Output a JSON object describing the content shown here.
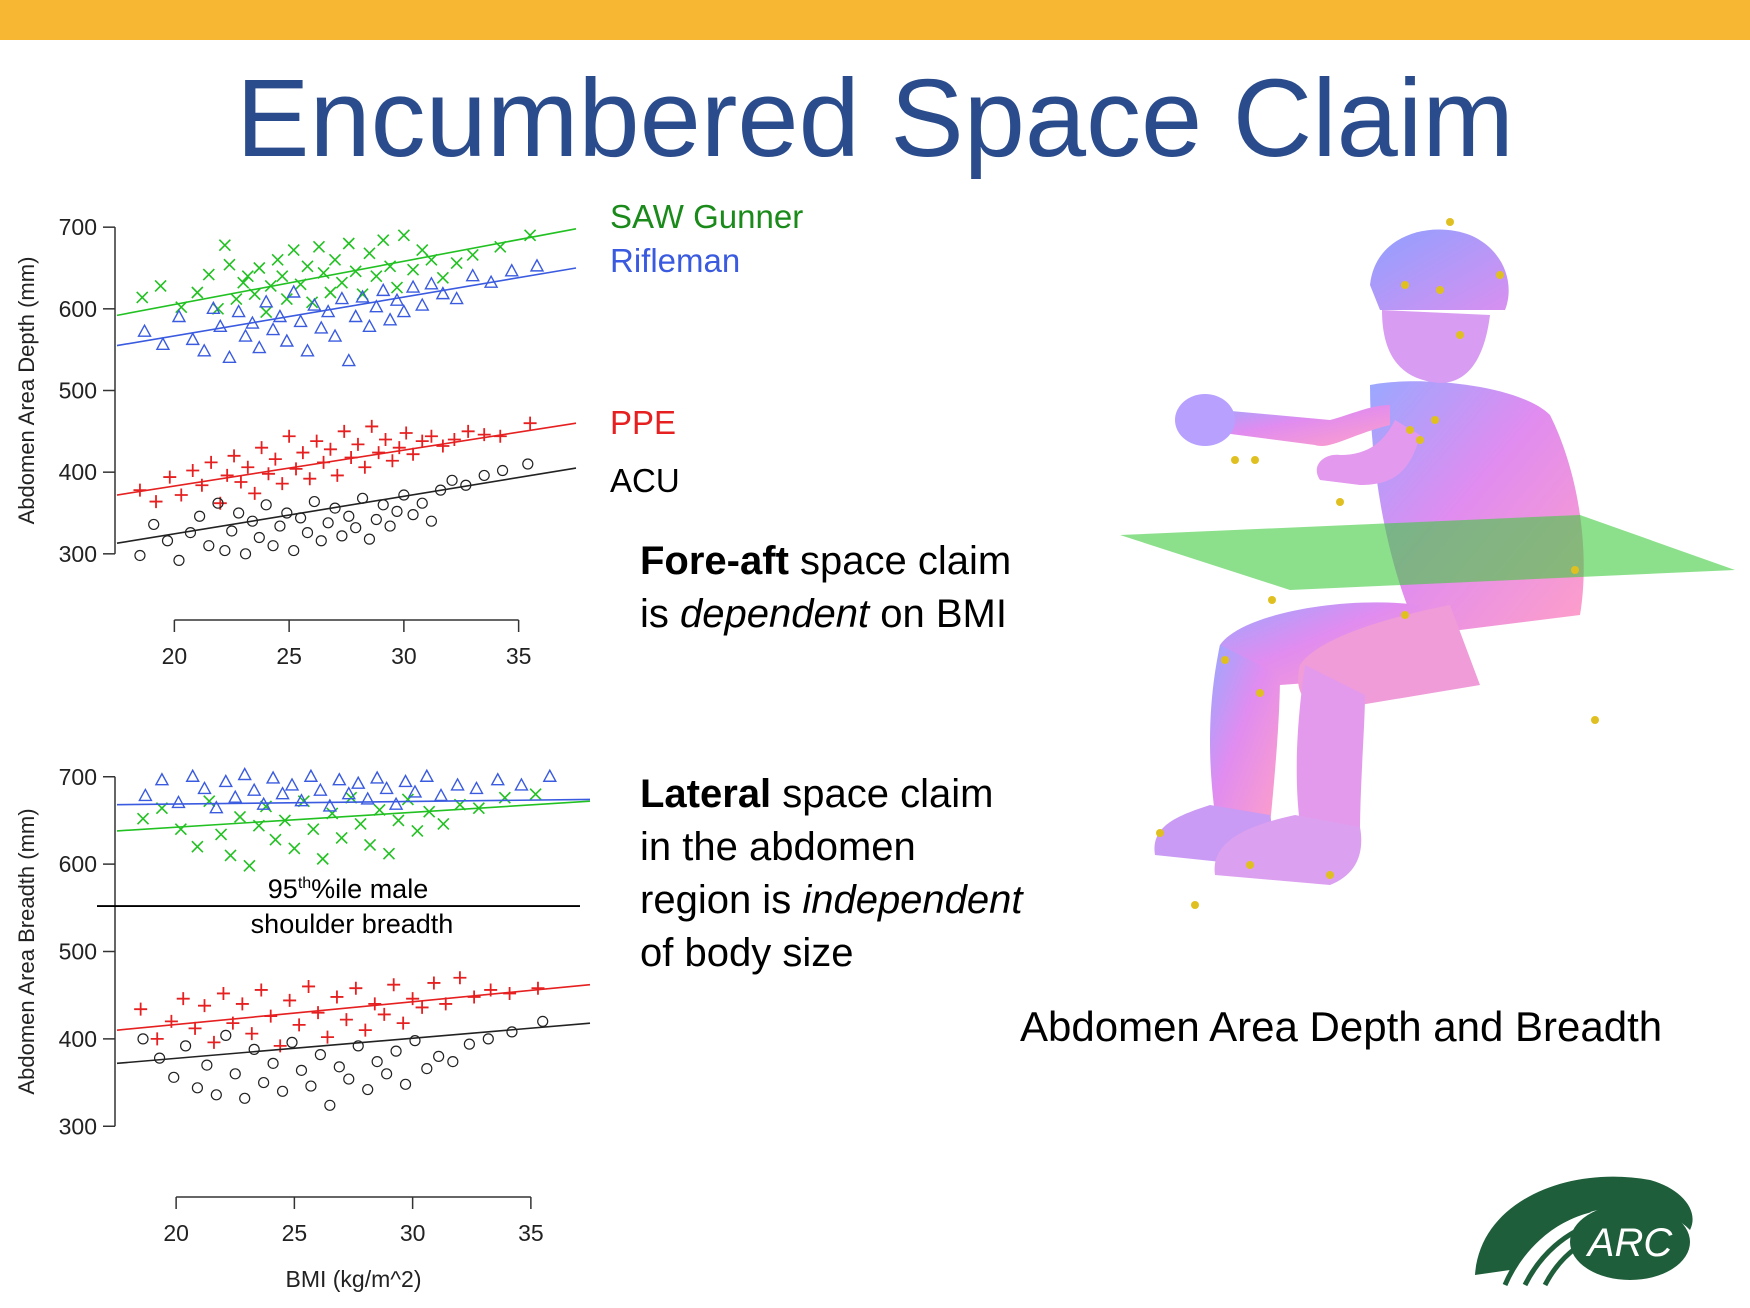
{
  "slide": {
    "title": "Encumbered Space Claim",
    "accent_bar_color": "#F7B733",
    "title_color": "#2B4C8C"
  },
  "legend": {
    "saw_gunner": {
      "label": "SAW Gunner",
      "color": "#1A8A1A"
    },
    "rifleman": {
      "label": "Rifleman",
      "color": "#3A5BE0"
    },
    "ppe": {
      "label": "PPE",
      "color": "#E62020"
    },
    "acu": {
      "label": "ACU",
      "color": "#000000"
    }
  },
  "statements": {
    "fore_aft": {
      "bold": "Fore-aft",
      "line1_rest": " space claim",
      "line2_pre": "is ",
      "line2_italic": "dependent",
      "line2_post": " on BMI"
    },
    "lateral": {
      "bold": "Lateral",
      "line1_rest": " space claim",
      "line2": "in the abdomen",
      "line3_pre": "region is ",
      "line3_italic": "independent",
      "line4": "of body size"
    }
  },
  "figure_caption": "Abdomen Area Depth and Breadth",
  "logo": {
    "text": "ARC",
    "icon": "arc-logo-swoosh",
    "color": "#1F5E3A"
  },
  "model_icon": "soldier-3d-model",
  "chart_data": [
    {
      "type": "scatter",
      "title": "",
      "xlabel": "",
      "ylabel": "Abdomen Area Depth (mm)",
      "xlim": [
        17.5,
        37.5
      ],
      "ylim": [
        290,
        710
      ],
      "xticks": [
        "20",
        "25",
        "30",
        "35"
      ],
      "yticks": [
        "300",
        "400",
        "500",
        "600",
        "700"
      ],
      "series": [
        {
          "name": "SAW Gunner",
          "marker": "x",
          "color": "#22C122",
          "line": [
            [
              17.5,
              592
            ],
            [
              37.5,
              698
            ]
          ],
          "x": [
            18.6,
            19.4,
            20.3,
            21.0,
            21.5,
            21.9,
            22.2,
            22.4,
            22.7,
            23.0,
            23.2,
            23.5,
            23.7,
            24.0,
            24.2,
            24.5,
            24.7,
            24.9,
            25.2,
            25.5,
            25.8,
            26.0,
            26.3,
            26.5,
            26.8,
            27.0,
            27.3,
            27.6,
            27.9,
            28.2,
            28.5,
            28.8,
            29.1,
            29.4,
            29.7,
            30.0,
            30.4,
            30.8,
            31.2,
            31.7,
            32.3,
            33.0,
            34.2,
            35.5
          ],
          "y": [
            614,
            628,
            602,
            620,
            642,
            600,
            678,
            654,
            612,
            632,
            640,
            618,
            650,
            596,
            628,
            660,
            640,
            612,
            672,
            630,
            652,
            608,
            676,
            644,
            620,
            660,
            632,
            680,
            646,
            618,
            668,
            640,
            684,
            652,
            626,
            690,
            648,
            672,
            660,
            638,
            656,
            666,
            676,
            690
          ]
        },
        {
          "name": "Rifleman",
          "marker": "triangle",
          "color": "#3A5BE0",
          "line": [
            [
              17.5,
              555
            ],
            [
              37.5,
              650
            ]
          ],
          "x": [
            18.7,
            19.5,
            20.2,
            20.8,
            21.3,
            21.7,
            22.0,
            22.4,
            22.8,
            23.1,
            23.4,
            23.7,
            24.0,
            24.3,
            24.6,
            24.9,
            25.2,
            25.5,
            25.8,
            26.1,
            26.4,
            26.7,
            27.0,
            27.3,
            27.6,
            27.9,
            28.2,
            28.5,
            28.8,
            29.1,
            29.4,
            29.7,
            30.0,
            30.4,
            30.8,
            31.2,
            31.7,
            32.3,
            33.0,
            33.8,
            34.7,
            35.8
          ],
          "y": [
            572,
            556,
            590,
            562,
            548,
            600,
            578,
            540,
            596,
            566,
            582,
            552,
            608,
            574,
            590,
            560,
            620,
            584,
            548,
            604,
            576,
            596,
            566,
            612,
            536,
            590,
            614,
            578,
            602,
            622,
            586,
            610,
            596,
            626,
            604,
            630,
            618,
            612,
            640,
            632,
            646,
            652
          ]
        }
      ]
    },
    {
      "type": "scatter",
      "title": "",
      "xlabel": "",
      "ylabel": "",
      "series": [
        {
          "name": "PPE",
          "marker": "plus",
          "color": "#E62020",
          "line": [
            [
              17.5,
              372
            ],
            [
              37.5,
              460
            ]
          ],
          "x": [
            18.5,
            19.2,
            19.8,
            20.3,
            20.8,
            21.2,
            21.6,
            22.0,
            22.3,
            22.6,
            22.9,
            23.2,
            23.5,
            23.8,
            24.1,
            24.4,
            24.7,
            25.0,
            25.3,
            25.6,
            25.9,
            26.2,
            26.5,
            26.8,
            27.1,
            27.4,
            27.7,
            28.0,
            28.3,
            28.6,
            28.9,
            29.2,
            29.5,
            29.8,
            30.1,
            30.4,
            30.8,
            31.2,
            31.7,
            32.2,
            32.8,
            33.5,
            34.2,
            35.5
          ],
          "y": [
            378,
            364,
            394,
            372,
            402,
            384,
            412,
            362,
            396,
            420,
            388,
            406,
            374,
            430,
            398,
            416,
            386,
            444,
            404,
            424,
            392,
            438,
            412,
            428,
            396,
            450,
            418,
            434,
            406,
            456,
            424,
            440,
            414,
            430,
            448,
            422,
            438,
            444,
            432,
            440,
            450,
            446,
            444,
            460
          ]
        },
        {
          "name": "ACU",
          "marker": "circle",
          "color": "#222222",
          "line": [
            [
              17.5,
              313
            ],
            [
              37.5,
              405
            ]
          ],
          "x": [
            18.5,
            19.1,
            19.7,
            20.2,
            20.7,
            21.1,
            21.5,
            21.9,
            22.2,
            22.5,
            22.8,
            23.1,
            23.4,
            23.7,
            24.0,
            24.3,
            24.6,
            24.9,
            25.2,
            25.5,
            25.8,
            26.1,
            26.4,
            26.7,
            27.0,
            27.3,
            27.6,
            27.9,
            28.2,
            28.5,
            28.8,
            29.1,
            29.4,
            29.7,
            30.0,
            30.4,
            30.8,
            31.2,
            31.6,
            32.1,
            32.7,
            33.5,
            34.3,
            35.4
          ],
          "y": [
            298,
            336,
            316,
            292,
            326,
            346,
            310,
            362,
            304,
            328,
            350,
            300,
            340,
            320,
            360,
            310,
            334,
            350,
            304,
            344,
            326,
            364,
            316,
            338,
            356,
            322,
            346,
            332,
            368,
            318,
            342,
            360,
            334,
            352,
            372,
            348,
            362,
            340,
            378,
            390,
            384,
            396,
            402,
            410
          ]
        }
      ]
    },
    {
      "type": "scatter",
      "title": "",
      "xlabel": "BMI (kg/m^2)",
      "ylabel": "Abdomen Area Breadth (mm)",
      "xlim": [
        17.5,
        37.5
      ],
      "ylim": [
        290,
        710
      ],
      "xticks": [
        "20",
        "25",
        "30",
        "35"
      ],
      "yticks": [
        "300",
        "400",
        "500",
        "600",
        "700"
      ],
      "annotation": {
        "line1_base": "95",
        "line1_sup": "th",
        "line1_rest": "%ile male",
        "line2": "shoulder breadth",
        "value": 552
      },
      "series": [
        {
          "name": "SAW Gunner",
          "marker": "x",
          "color": "#22C122",
          "line": [
            [
              17.5,
              638
            ],
            [
              37.5,
              672
            ]
          ],
          "x": [
            18.6,
            19.4,
            20.2,
            20.9,
            21.4,
            21.9,
            22.3,
            22.7,
            23.1,
            23.5,
            23.8,
            24.2,
            24.6,
            25.0,
            25.4,
            25.8,
            26.2,
            26.6,
            27.0,
            27.4,
            27.8,
            28.2,
            28.6,
            29.0,
            29.4,
            29.8,
            30.2,
            30.7,
            31.3,
            32.0,
            32.8,
            33.9,
            35.2
          ],
          "y": [
            652,
            664,
            640,
            620,
            672,
            634,
            610,
            654,
            598,
            644,
            666,
            628,
            650,
            618,
            672,
            640,
            606,
            658,
            630,
            676,
            646,
            622,
            662,
            612,
            650,
            674,
            638,
            660,
            646,
            668,
            664,
            676,
            680
          ]
        },
        {
          "name": "Rifleman",
          "marker": "triangle",
          "color": "#3A5BE0",
          "line": [
            [
              17.5,
              668
            ],
            [
              37.5,
              674
            ]
          ],
          "x": [
            18.7,
            19.4,
            20.1,
            20.7,
            21.2,
            21.7,
            22.1,
            22.5,
            22.9,
            23.3,
            23.7,
            24.1,
            24.5,
            24.9,
            25.3,
            25.7,
            26.1,
            26.5,
            26.9,
            27.3,
            27.7,
            28.1,
            28.5,
            28.9,
            29.3,
            29.7,
            30.1,
            30.6,
            31.2,
            31.9,
            32.7,
            33.6,
            34.6,
            35.8
          ],
          "y": [
            678,
            696,
            670,
            700,
            686,
            664,
            694,
            676,
            702,
            684,
            668,
            698,
            680,
            690,
            672,
            700,
            684,
            666,
            696,
            680,
            692,
            674,
            698,
            686,
            668,
            694,
            682,
            700,
            678,
            690,
            686,
            696,
            690,
            700
          ]
        }
      ]
    },
    {
      "type": "scatter",
      "title": "",
      "xlabel": "",
      "ylabel": "",
      "series": [
        {
          "name": "PPE",
          "marker": "plus",
          "color": "#E62020",
          "line": [
            [
              17.5,
              410
            ],
            [
              37.5,
              462
            ]
          ],
          "x": [
            18.5,
            19.2,
            19.8,
            20.3,
            20.8,
            21.2,
            21.6,
            22.0,
            22.4,
            22.8,
            23.2,
            23.6,
            24.0,
            24.4,
            24.8,
            25.2,
            25.6,
            26.0,
            26.4,
            26.8,
            27.2,
            27.6,
            28.0,
            28.4,
            28.8,
            29.2,
            29.6,
            30.0,
            30.4,
            30.9,
            31.4,
            32.0,
            32.6,
            33.3,
            34.1,
            35.3
          ],
          "y": [
            434,
            400,
            420,
            446,
            412,
            438,
            396,
            452,
            418,
            440,
            406,
            456,
            426,
            392,
            444,
            416,
            460,
            430,
            402,
            448,
            422,
            458,
            410,
            440,
            428,
            462,
            418,
            446,
            436,
            464,
            440,
            470,
            448,
            456,
            452,
            458
          ]
        },
        {
          "name": "ACU",
          "marker": "circle",
          "color": "#222222",
          "line": [
            [
              17.5,
              372
            ],
            [
              37.5,
              418
            ]
          ],
          "x": [
            18.6,
            19.3,
            19.9,
            20.4,
            20.9,
            21.3,
            21.7,
            22.1,
            22.5,
            22.9,
            23.3,
            23.7,
            24.1,
            24.5,
            24.9,
            25.3,
            25.7,
            26.1,
            26.5,
            26.9,
            27.3,
            27.7,
            28.1,
            28.5,
            28.9,
            29.3,
            29.7,
            30.1,
            30.6,
            31.1,
            31.7,
            32.4,
            33.2,
            34.2,
            35.5
          ],
          "y": [
            400,
            378,
            356,
            392,
            344,
            370,
            336,
            404,
            360,
            332,
            388,
            350,
            372,
            340,
            396,
            364,
            346,
            382,
            324,
            368,
            354,
            392,
            342,
            374,
            360,
            386,
            348,
            398,
            366,
            380,
            374,
            394,
            400,
            408,
            420
          ]
        }
      ]
    }
  ]
}
